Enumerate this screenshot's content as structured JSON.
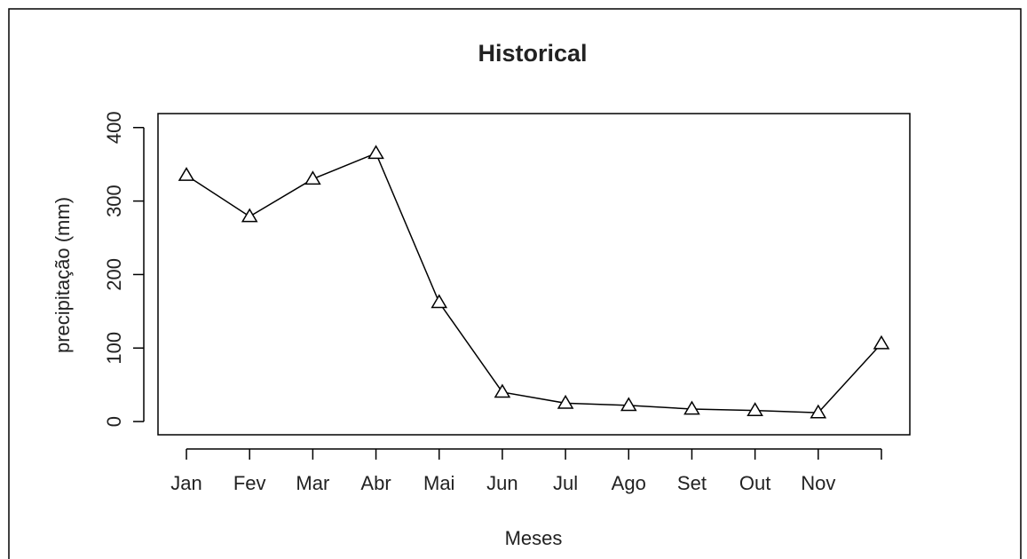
{
  "chart_data": {
    "type": "line",
    "title": "Historical",
    "x_label": "Meses",
    "y_label": "precipitação (mm)",
    "categories": [
      "Jan",
      "Fev",
      "Mar",
      "Abr",
      "Mai",
      "Jun",
      "Jul",
      "Ago",
      "Set",
      "Out",
      "Nov",
      null
    ],
    "values": [
      335,
      279,
      330,
      365,
      162,
      40,
      25,
      22,
      17,
      15,
      12,
      106
    ],
    "color": "#000000",
    "marker": "triangle",
    "ylim": [
      -18,
      419
    ],
    "yticks": [
      0,
      100,
      200,
      300,
      400
    ],
    "grid": false
  }
}
